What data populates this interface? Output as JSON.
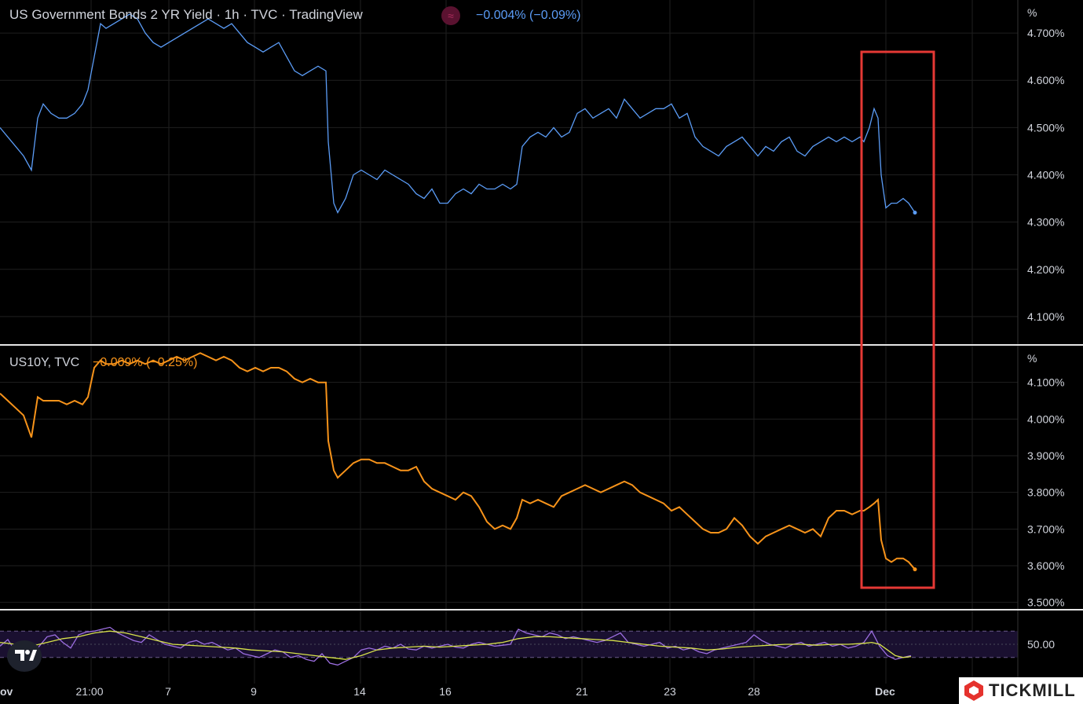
{
  "top_panel": {
    "title": "US Government Bonds 2 YR Yield · 1h · TVC · TradingView",
    "change": "−0.004% (−0.09%)",
    "change_color": "#5b9cf6",
    "flag_icon": "≈"
  },
  "bottom_panel": {
    "title": "US10Y, TVC",
    "change": "−0.009% (−0.25%)",
    "change_color": "#f7931a"
  },
  "brand": {
    "name": "TICKMILL"
  },
  "highlight_color": "#e53935",
  "chart_data": [
    {
      "type": "line",
      "title": "US Government Bonds 2 YR Yield · 1h · TVC · TradingView",
      "ylabel": "%",
      "ylim": [
        4.04,
        4.77
      ],
      "yticks": [
        "4.700%",
        "4.600%",
        "4.500%",
        "4.400%",
        "4.300%",
        "4.200%",
        "4.100%"
      ],
      "color": "#5b9cf6",
      "series": [
        {
          "x": [
            0,
            10,
            20,
            30,
            40,
            48,
            55,
            65,
            75,
            85,
            95,
            105,
            112,
            120,
            128,
            135,
            145,
            155,
            165,
            175,
            185,
            195,
            205,
            215,
            225,
            235,
            245,
            255,
            265,
            275,
            285,
            295,
            305,
            315,
            325,
            335,
            345,
            355,
            365,
            375,
            385,
            395,
            405,
            415,
            418,
            425,
            430,
            440,
            450,
            460,
            470,
            480,
            490,
            500,
            510,
            520,
            530,
            540,
            550,
            560,
            570,
            580,
            590,
            600,
            610,
            620,
            630,
            640,
            650,
            658,
            665,
            675,
            685,
            695,
            705,
            715,
            725,
            735,
            745,
            755,
            765,
            775,
            785,
            795,
            805,
            815,
            825,
            835,
            845,
            855,
            865,
            875,
            885,
            895,
            905,
            915,
            925,
            935,
            945,
            955,
            965,
            975,
            985,
            995,
            1005,
            1015,
            1025,
            1035,
            1045,
            1055,
            1065,
            1075,
            1085,
            1095,
            1100,
            1107,
            1113,
            1118,
            1122,
            1128,
            1135,
            1142,
            1150,
            1157,
            1165
          ],
          "values": [
            4.5,
            4.48,
            4.46,
            4.44,
            4.41,
            4.52,
            4.55,
            4.53,
            4.52,
            4.52,
            4.53,
            4.55,
            4.58,
            4.65,
            4.72,
            4.71,
            4.72,
            4.73,
            4.74,
            4.73,
            4.7,
            4.68,
            4.67,
            4.68,
            4.69,
            4.7,
            4.71,
            4.72,
            4.73,
            4.72,
            4.71,
            4.72,
            4.7,
            4.68,
            4.67,
            4.66,
            4.67,
            4.68,
            4.65,
            4.62,
            4.61,
            4.62,
            4.63,
            4.62,
            4.47,
            4.34,
            4.32,
            4.35,
            4.4,
            4.41,
            4.4,
            4.39,
            4.41,
            4.4,
            4.39,
            4.38,
            4.36,
            4.35,
            4.37,
            4.34,
            4.34,
            4.36,
            4.37,
            4.36,
            4.38,
            4.37,
            4.37,
            4.38,
            4.37,
            4.38,
            4.46,
            4.48,
            4.49,
            4.48,
            4.5,
            4.48,
            4.49,
            4.53,
            4.54,
            4.52,
            4.53,
            4.54,
            4.52,
            4.56,
            4.54,
            4.52,
            4.53,
            4.54,
            4.54,
            4.55,
            4.52,
            4.53,
            4.48,
            4.46,
            4.45,
            4.44,
            4.46,
            4.47,
            4.48,
            4.46,
            4.44,
            4.46,
            4.45,
            4.47,
            4.48,
            4.45,
            4.44,
            4.46,
            4.47,
            4.48,
            4.47,
            4.48,
            4.47,
            4.48,
            4.47,
            4.5,
            4.54,
            4.52,
            4.4,
            4.33,
            4.34,
            4.34,
            4.35,
            4.34,
            4.32
          ]
        }
      ]
    },
    {
      "type": "line",
      "title": "US10Y, TVC",
      "ylabel": "%",
      "ylim": [
        3.48,
        4.2
      ],
      "yticks": [
        "4.100%",
        "4.000%",
        "3.900%",
        "3.800%",
        "3.700%",
        "3.600%",
        "3.500%"
      ],
      "color": "#f7931a",
      "series": [
        {
          "x": [
            0,
            10,
            20,
            30,
            40,
            48,
            55,
            65,
            75,
            85,
            95,
            105,
            112,
            120,
            128,
            135,
            145,
            155,
            165,
            175,
            185,
            195,
            205,
            215,
            225,
            235,
            245,
            255,
            265,
            275,
            285,
            295,
            305,
            315,
            325,
            335,
            345,
            355,
            365,
            375,
            385,
            395,
            405,
            415,
            418,
            425,
            430,
            440,
            450,
            460,
            470,
            480,
            490,
            500,
            510,
            520,
            530,
            540,
            550,
            560,
            570,
            580,
            590,
            600,
            610,
            620,
            630,
            640,
            650,
            658,
            665,
            675,
            685,
            695,
            705,
            715,
            725,
            735,
            745,
            755,
            765,
            775,
            785,
            795,
            805,
            815,
            825,
            835,
            845,
            855,
            865,
            875,
            885,
            895,
            905,
            915,
            925,
            935,
            945,
            955,
            965,
            975,
            985,
            995,
            1005,
            1015,
            1025,
            1035,
            1045,
            1055,
            1065,
            1075,
            1085,
            1095,
            1100,
            1107,
            1113,
            1118,
            1122,
            1128,
            1135,
            1142,
            1150,
            1157,
            1165
          ],
          "values": [
            4.07,
            4.05,
            4.03,
            4.01,
            3.95,
            4.06,
            4.05,
            4.05,
            4.05,
            4.04,
            4.05,
            4.04,
            4.06,
            4.14,
            4.16,
            4.15,
            4.15,
            4.16,
            4.15,
            4.16,
            4.15,
            4.16,
            4.15,
            4.16,
            4.17,
            4.16,
            4.17,
            4.18,
            4.17,
            4.16,
            4.17,
            4.16,
            4.14,
            4.13,
            4.14,
            4.13,
            4.14,
            4.14,
            4.13,
            4.11,
            4.1,
            4.11,
            4.1,
            4.1,
            3.94,
            3.86,
            3.84,
            3.86,
            3.88,
            3.89,
            3.89,
            3.88,
            3.88,
            3.87,
            3.86,
            3.86,
            3.87,
            3.83,
            3.81,
            3.8,
            3.79,
            3.78,
            3.8,
            3.79,
            3.76,
            3.72,
            3.7,
            3.71,
            3.7,
            3.73,
            3.78,
            3.77,
            3.78,
            3.77,
            3.76,
            3.79,
            3.8,
            3.81,
            3.82,
            3.81,
            3.8,
            3.81,
            3.82,
            3.83,
            3.82,
            3.8,
            3.79,
            3.78,
            3.77,
            3.75,
            3.76,
            3.74,
            3.72,
            3.7,
            3.69,
            3.69,
            3.7,
            3.73,
            3.71,
            3.68,
            3.66,
            3.68,
            3.69,
            3.7,
            3.71,
            3.7,
            3.69,
            3.7,
            3.68,
            3.73,
            3.75,
            3.75,
            3.74,
            3.75,
            3.75,
            3.76,
            3.77,
            3.78,
            3.67,
            3.62,
            3.61,
            3.62,
            3.62,
            3.61,
            3.59
          ]
        }
      ]
    },
    {
      "type": "line",
      "title": "",
      "ylim": [
        25,
        75
      ],
      "yticks": [
        "50.00"
      ],
      "series": [
        {
          "name": "",
          "color": "#9c6ee0",
          "x": [
            0,
            10,
            20,
            30,
            40,
            50,
            60,
            70,
            80,
            90,
            100,
            110,
            120,
            130,
            140,
            150,
            160,
            170,
            180,
            190,
            200,
            210,
            220,
            230,
            240,
            250,
            260,
            270,
            280,
            290,
            300,
            310,
            320,
            330,
            340,
            350,
            360,
            370,
            380,
            390,
            400,
            410,
            420,
            430,
            440,
            450,
            460,
            470,
            480,
            490,
            500,
            510,
            520,
            530,
            540,
            550,
            560,
            570,
            580,
            590,
            600,
            610,
            620,
            630,
            640,
            650,
            660,
            670,
            680,
            690,
            700,
            710,
            720,
            730,
            740,
            750,
            760,
            770,
            780,
            790,
            800,
            810,
            820,
            830,
            840,
            850,
            860,
            870,
            880,
            890,
            900,
            910,
            920,
            930,
            940,
            950,
            960,
            970,
            980,
            990,
            1000,
            1010,
            1020,
            1030,
            1040,
            1050,
            1060,
            1070,
            1080,
            1090,
            1100,
            1110,
            1120,
            1130,
            1140,
            1150,
            1160
          ],
          "values": [
            48,
            55,
            42,
            38,
            36,
            48,
            58,
            60,
            52,
            46,
            60,
            63,
            64,
            66,
            68,
            62,
            58,
            54,
            52,
            60,
            55,
            50,
            48,
            46,
            52,
            54,
            50,
            52,
            48,
            44,
            46,
            40,
            38,
            36,
            40,
            44,
            42,
            36,
            38,
            34,
            32,
            40,
            30,
            28,
            32,
            36,
            44,
            46,
            44,
            48,
            46,
            50,
            45,
            44,
            48,
            46,
            48,
            50,
            47,
            46,
            50,
            52,
            50,
            48,
            49,
            50,
            66,
            62,
            60,
            58,
            62,
            60,
            56,
            58,
            56,
            54,
            52,
            54,
            58,
            62,
            52,
            50,
            48,
            50,
            52,
            46,
            48,
            44,
            46,
            42,
            40,
            44,
            46,
            48,
            50,
            52,
            60,
            54,
            50,
            48,
            46,
            50,
            52,
            48,
            50,
            52,
            48,
            50,
            46,
            48,
            52,
            64,
            48,
            38,
            34,
            36,
            38
          ]
        },
        {
          "name": "",
          "color": "#d8e34a",
          "x": [
            0,
            20,
            40,
            60,
            80,
            100,
            120,
            140,
            160,
            180,
            200,
            220,
            240,
            260,
            280,
            300,
            320,
            340,
            360,
            380,
            400,
            420,
            440,
            460,
            480,
            500,
            520,
            540,
            560,
            580,
            600,
            620,
            640,
            660,
            680,
            700,
            720,
            740,
            760,
            780,
            800,
            820,
            840,
            860,
            880,
            900,
            920,
            940,
            960,
            980,
            1000,
            1020,
            1040,
            1060,
            1080,
            1100,
            1110,
            1120,
            1130,
            1140,
            1150,
            1160
          ],
          "values": [
            52,
            50,
            48,
            52,
            56,
            58,
            62,
            64,
            62,
            58,
            54,
            50,
            49,
            48,
            47,
            46,
            44,
            43,
            42,
            40,
            38,
            36,
            34,
            38,
            44,
            46,
            47,
            48,
            47,
            48,
            49,
            50,
            52,
            56,
            58,
            58,
            57,
            56,
            55,
            54,
            52,
            50,
            48,
            47,
            46,
            44,
            45,
            47,
            48,
            49,
            50,
            50,
            49,
            50,
            50,
            51,
            52,
            50,
            44,
            38,
            36,
            37
          ]
        }
      ],
      "bands": [
        64,
        36
      ]
    }
  ],
  "x_axis_labels": [
    "Nov",
    "21:00",
    "7",
    "9",
    "14",
    "16",
    "21",
    "23",
    "28",
    "Dec"
  ]
}
